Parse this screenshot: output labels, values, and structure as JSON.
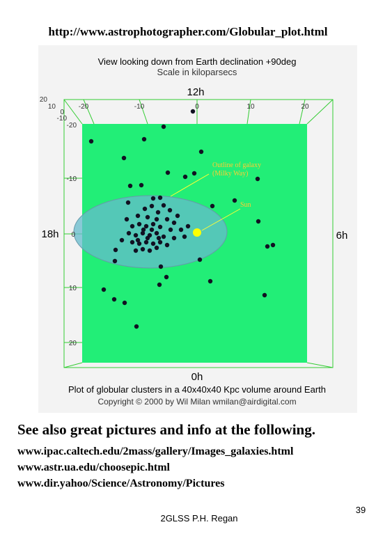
{
  "header": {
    "title": "http://www.astrophotographer.com/Globular_plot.html"
  },
  "figure": {
    "title": "View looking down from Earth declination +90deg",
    "subtitle": "Scale in kiloparsecs",
    "hours": {
      "top": "12h",
      "left": "18h",
      "right": "6h",
      "bottom": "0h"
    },
    "top_axis": [
      "-20",
      "-10",
      "0",
      "10",
      "20"
    ],
    "left_axis": [
      "-20",
      "-10",
      "0",
      "10",
      "20"
    ],
    "depth_axis": [
      "20",
      "10",
      "0",
      "-10"
    ],
    "annotations": {
      "galaxy": [
        "Outline of galaxy",
        "(Milky Way)"
      ],
      "sun": "Sun"
    },
    "caption": "Plot of globular clusters in a 40x40x40 Kpc volume around Earth",
    "copyright": "Copyright © 2000 by Wil Milan  wmilan@airdigital.com"
  },
  "body": {
    "heading": "See also great pictures and info at the following.",
    "links": [
      "www.ipac.caltech.edu/2mass/gallery/Images_galaxies.html",
      "www.astr.ua.edu/choosepic.html",
      "www.dir.yahoo/Science/Astronomy/Pictures"
    ]
  },
  "footer": {
    "author": "2GLSS P.H. Regan",
    "page": "39"
  }
}
